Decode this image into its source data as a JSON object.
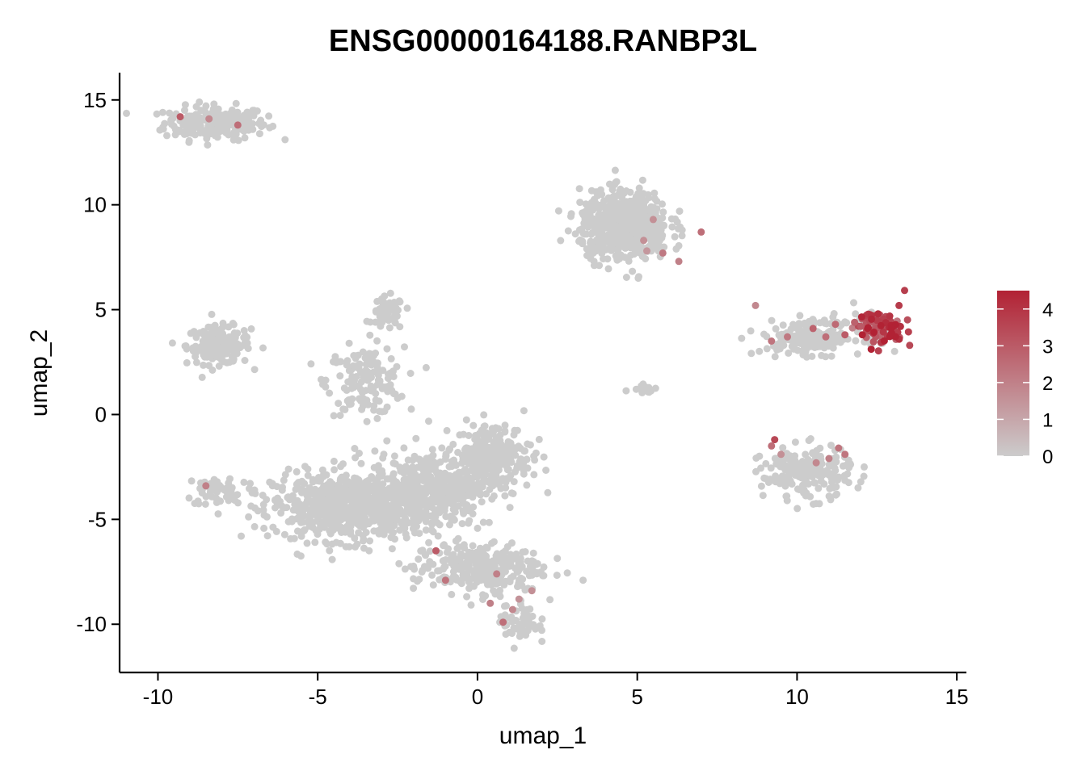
{
  "chart_data": {
    "type": "scatter",
    "title": "ENSG00000164188.RANBP3L",
    "xlabel": "umap_1",
    "ylabel": "umap_2",
    "xlim": [
      -11.2,
      15.3
    ],
    "ylim": [
      -12.3,
      16.3
    ],
    "x_ticks": [
      -10,
      -5,
      0,
      5,
      10,
      15
    ],
    "y_ticks": [
      -10,
      -5,
      0,
      5,
      10,
      15
    ],
    "x_tick_labels": [
      "-10",
      "-5",
      "0",
      "5",
      "10",
      "15"
    ],
    "y_tick_labels": [
      "-10",
      "-5",
      "0",
      "5",
      "10",
      "15"
    ],
    "grid": false,
    "legend_position": "right",
    "color_scale": {
      "low_color": "#cccccc",
      "high_color": "#b22234",
      "min": 0,
      "max": 4.5,
      "ticks": [
        0,
        1,
        2,
        3,
        4
      ],
      "tick_labels": [
        "0",
        "1",
        "2",
        "3",
        "4"
      ]
    },
    "clusters": [
      {
        "cx": -8.2,
        "cy": 13.9,
        "sx": 0.8,
        "sy": 0.4,
        "n": 220
      },
      {
        "cx": -8.1,
        "cy": 3.3,
        "sx": 0.5,
        "sy": 0.45,
        "n": 180
      },
      {
        "cx": -2.8,
        "cy": 4.8,
        "sx": 0.25,
        "sy": 0.4,
        "n": 60
      },
      {
        "cx": -3.5,
        "cy": 1.6,
        "sx": 0.6,
        "sy": 0.8,
        "n": 150
      },
      {
        "cx": -8.0,
        "cy": -3.6,
        "sx": 0.6,
        "sy": 0.4,
        "n": 60
      },
      {
        "cx": -4.0,
        "cy": -4.4,
        "sx": 1.2,
        "sy": 0.8,
        "n": 700
      },
      {
        "cx": -1.5,
        "cy": -3.5,
        "sx": 0.9,
        "sy": 0.9,
        "n": 400
      },
      {
        "cx": 0.5,
        "cy": -2.0,
        "sx": 0.6,
        "sy": 0.8,
        "n": 250
      },
      {
        "cx": 0.0,
        "cy": -7.3,
        "sx": 1.0,
        "sy": 0.6,
        "n": 300
      },
      {
        "cx": 1.3,
        "cy": -9.8,
        "sx": 0.3,
        "sy": 0.6,
        "n": 60
      },
      {
        "cx": 4.6,
        "cy": 9.0,
        "sx": 0.7,
        "sy": 0.8,
        "n": 600
      },
      {
        "cx": 5.2,
        "cy": 1.3,
        "sx": 0.2,
        "sy": 0.15,
        "n": 20
      },
      {
        "cx": 10.5,
        "cy": 3.7,
        "sx": 0.8,
        "sy": 0.4,
        "n": 180
      },
      {
        "cx": 12.6,
        "cy": 4.2,
        "sx": 0.4,
        "sy": 0.4,
        "n": 120,
        "expr": 3.5
      },
      {
        "cx": 10.3,
        "cy": -2.8,
        "sx": 0.7,
        "sy": 0.6,
        "n": 200
      }
    ],
    "expressing_points": [
      {
        "x": 0.4,
        "y": -9.0,
        "v": 2.0
      },
      {
        "x": 0.8,
        "y": -9.9,
        "v": 2.5
      },
      {
        "x": 1.1,
        "y": -9.3,
        "v": 1.8
      },
      {
        "x": -1.0,
        "y": -7.9,
        "v": 2.3
      },
      {
        "x": -1.3,
        "y": -6.5,
        "v": 3.0
      },
      {
        "x": 0.6,
        "y": -7.6,
        "v": 2.0
      },
      {
        "x": 1.7,
        "y": -8.4,
        "v": 1.6
      },
      {
        "x": 1.3,
        "y": -8.8,
        "v": 1.5
      },
      {
        "x": 5.2,
        "y": 8.3,
        "v": 1.6
      },
      {
        "x": 5.5,
        "y": 9.3,
        "v": 1.6
      },
      {
        "x": 5.8,
        "y": 7.7,
        "v": 2.2
      },
      {
        "x": 6.3,
        "y": 7.3,
        "v": 2.0
      },
      {
        "x": 7.0,
        "y": 8.7,
        "v": 2.5
      },
      {
        "x": 5.3,
        "y": 7.8,
        "v": 1.4
      },
      {
        "x": -9.3,
        "y": 14.2,
        "v": 3.0
      },
      {
        "x": -8.4,
        "y": 14.1,
        "v": 1.8
      },
      {
        "x": -7.5,
        "y": 13.8,
        "v": 2.5
      },
      {
        "x": -8.5,
        "y": -3.4,
        "v": 2.0
      },
      {
        "x": 8.7,
        "y": 5.2,
        "v": 1.8
      },
      {
        "x": 9.2,
        "y": 3.5,
        "v": 2.3
      },
      {
        "x": 9.7,
        "y": 3.7,
        "v": 2.2
      },
      {
        "x": 10.5,
        "y": 4.1,
        "v": 2.8
      },
      {
        "x": 10.9,
        "y": 3.7,
        "v": 2.5
      },
      {
        "x": 11.2,
        "y": 4.3,
        "v": 2.6
      },
      {
        "x": 11.5,
        "y": 3.8,
        "v": 3.0
      },
      {
        "x": 11.8,
        "y": 4.4,
        "v": 2.8
      },
      {
        "x": 12.0,
        "y": 4.2,
        "v": 3.0
      },
      {
        "x": 9.3,
        "y": -1.2,
        "v": 3.5
      },
      {
        "x": 9.2,
        "y": -1.5,
        "v": 2.5
      },
      {
        "x": 11.3,
        "y": -1.6,
        "v": 2.3
      },
      {
        "x": 11.5,
        "y": -1.9,
        "v": 2.3
      },
      {
        "x": 10.6,
        "y": -2.3,
        "v": 1.8
      },
      {
        "x": 11.0,
        "y": -2.1,
        "v": 2.0
      },
      {
        "x": 9.5,
        "y": -1.9,
        "v": 1.6
      }
    ]
  }
}
